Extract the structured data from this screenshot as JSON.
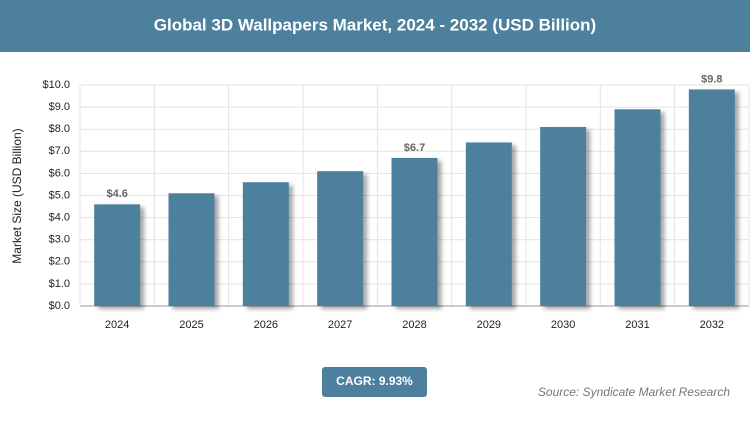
{
  "chart_data": {
    "type": "bar",
    "title": "Global 3D Wallpapers Market, 2024 - 2032 (USD Billion)",
    "y_label": "Market Size (USD Billion)",
    "categories": [
      "2024",
      "2025",
      "2026",
      "2027",
      "2028",
      "2029",
      "2030",
      "2031",
      "2032"
    ],
    "values": [
      4.6,
      5.1,
      5.6,
      6.1,
      6.7,
      7.4,
      8.1,
      8.9,
      9.8
    ],
    "value_labels": [
      "$4.6",
      null,
      null,
      null,
      "$6.7",
      null,
      null,
      null,
      "$9.8"
    ],
    "color": "#4d809d",
    "ylim": [
      0,
      10
    ],
    "yticks": [
      {
        "value": 0,
        "label": "$0.0"
      },
      {
        "value": 1,
        "label": "$1.0"
      },
      {
        "value": 2,
        "label": "$2.0"
      },
      {
        "value": 3,
        "label": "$3.0"
      },
      {
        "value": 4,
        "label": "$4.0"
      },
      {
        "value": 5,
        "label": "$5.0"
      },
      {
        "value": 6,
        "label": "$6.0"
      },
      {
        "value": 7,
        "label": "$7.0"
      },
      {
        "value": 8,
        "label": "$8.0"
      },
      {
        "value": 9,
        "label": "$9.0"
      },
      {
        "value": 10,
        "label": "$10.0"
      }
    ],
    "grid": true,
    "cagr": "CAGR: 9.93%",
    "source": "Source: Syndicate Market Research"
  }
}
